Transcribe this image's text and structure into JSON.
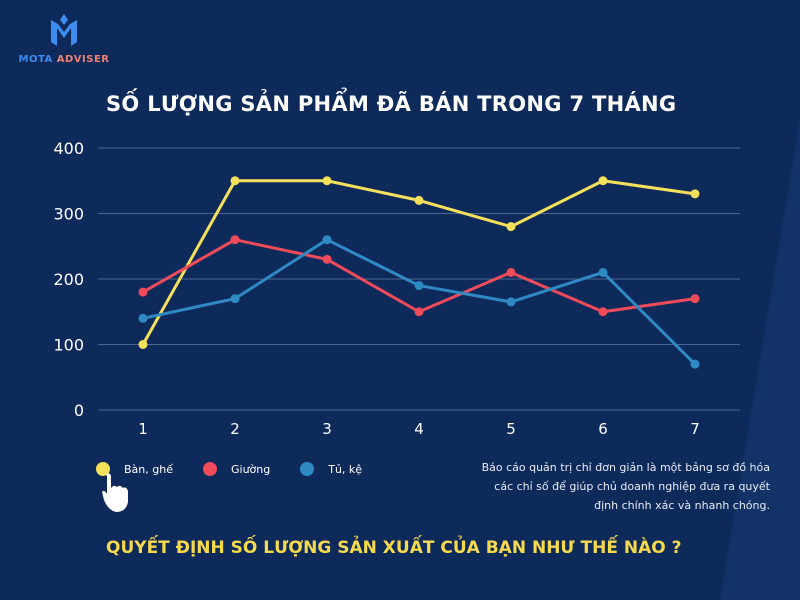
{
  "brand": {
    "name_part1": "MOTA",
    "name_part2": "ADVISER"
  },
  "chart_data": {
    "type": "line",
    "title": "SỐ LƯỢNG SẢN PHẨM ĐÃ BÁN TRONG 7 THÁNG",
    "categories": [
      "1",
      "2",
      "3",
      "4",
      "5",
      "6",
      "7"
    ],
    "ylim": [
      0,
      400
    ],
    "yticks": [
      "0",
      "100",
      "200",
      "300",
      "400"
    ],
    "grid": true,
    "legend_position": "bottom-left",
    "series": [
      {
        "name": "Bàn, ghế",
        "color": "#f5e05a",
        "values": [
          100,
          350,
          350,
          320,
          280,
          350,
          330
        ]
      },
      {
        "name": "Giường",
        "color": "#ef4b5a",
        "values": [
          180,
          260,
          230,
          150,
          210,
          150,
          170
        ]
      },
      {
        "name": "Tủ, kệ",
        "color": "#2f8ac4",
        "values": [
          140,
          170,
          260,
          190,
          165,
          210,
          70
        ]
      }
    ]
  },
  "description": "Báo cáo quản trị chỉ đơn giản là một bảng sơ đồ hóa các chỉ số để giúp chủ doanh nghiệp đưa ra quyết định chính xác và nhanh chóng.",
  "question": "QUYẾT ĐỊNH SỐ LƯỢNG SẢN XUẤT CỦA BẠN NHƯ THẾ NÀO ?"
}
